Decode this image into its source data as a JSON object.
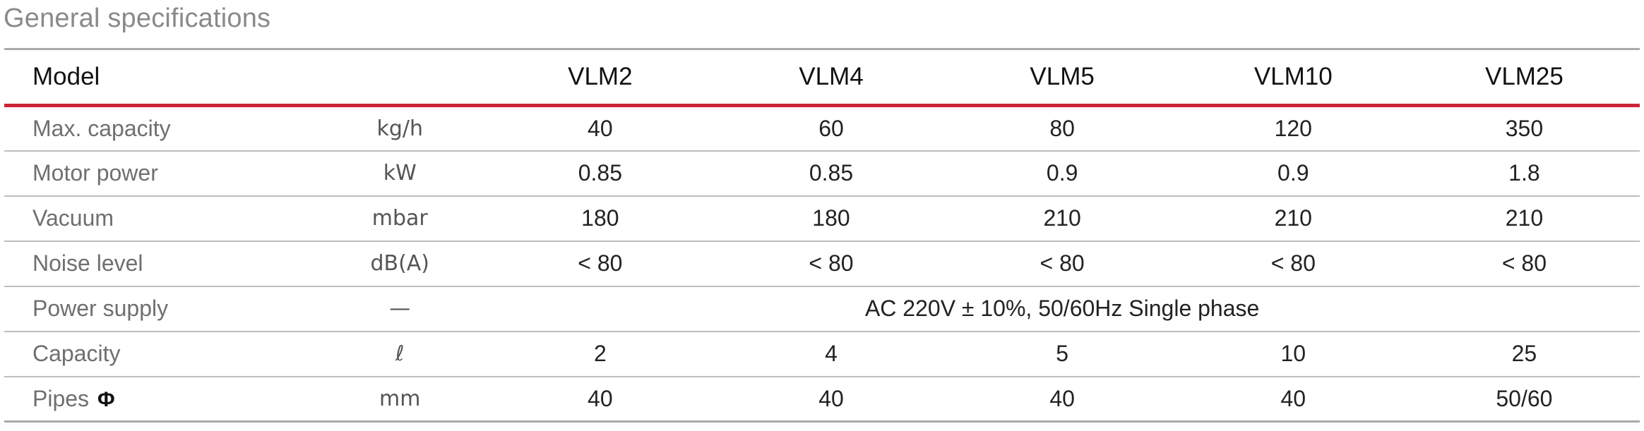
{
  "title": "General specifications",
  "table": {
    "header": {
      "label": "Model",
      "models": [
        "VLM2",
        "VLM4",
        "VLM5",
        "VLM10",
        "VLM25"
      ]
    },
    "rows": [
      {
        "label": "Max. capacity",
        "unit": "kg/h",
        "values": [
          "40",
          "60",
          "80",
          "120",
          "350"
        ]
      },
      {
        "label": "Motor power",
        "unit": "kW",
        "values": [
          "0.85",
          "0.85",
          "0.9",
          "0.9",
          "1.8"
        ]
      },
      {
        "label": "Vacuum",
        "unit": "mbar",
        "values": [
          "180",
          "180",
          "210",
          "210",
          "210"
        ]
      },
      {
        "label": "Noise level",
        "unit": "dB(A)",
        "values": [
          "< 80",
          "< 80",
          "< 80",
          "< 80",
          "< 80"
        ]
      },
      {
        "label": "Power supply",
        "unit": "—",
        "merged_value": "AC 220V ± 10%, 50/60Hz  Single phase"
      },
      {
        "label": "Capacity",
        "unit": "ℓ",
        "values": [
          "2",
          "4",
          "5",
          "10",
          "25"
        ]
      },
      {
        "label": "Pipes",
        "label_symbol": "Φ",
        "unit": "mm",
        "values": [
          "40",
          "40",
          "40",
          "40",
          "50/60"
        ]
      }
    ]
  }
}
